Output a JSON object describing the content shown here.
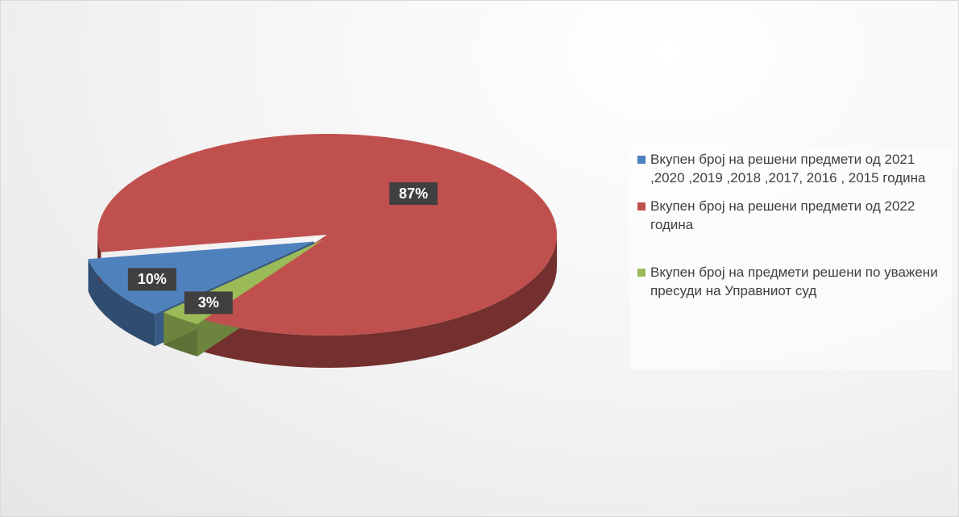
{
  "chart_data": {
    "type": "pie",
    "categories": [
      "Вкупен број на решени предмети од 2021 ,2020 ,2019 ,2018 ,2017, 2016 , 2015 година",
      "Вкупен број на решени предмети  од 2022 година",
      "Вкупен број на предмети решени по уважени пресуди на Управниот суд"
    ],
    "values": [
      10,
      87,
      3
    ],
    "value_labels": [
      "10%",
      "87%",
      "3%"
    ],
    "colors": [
      "#4f81bd",
      "#c0504d",
      "#9bbb59"
    ],
    "legend": "right"
  }
}
